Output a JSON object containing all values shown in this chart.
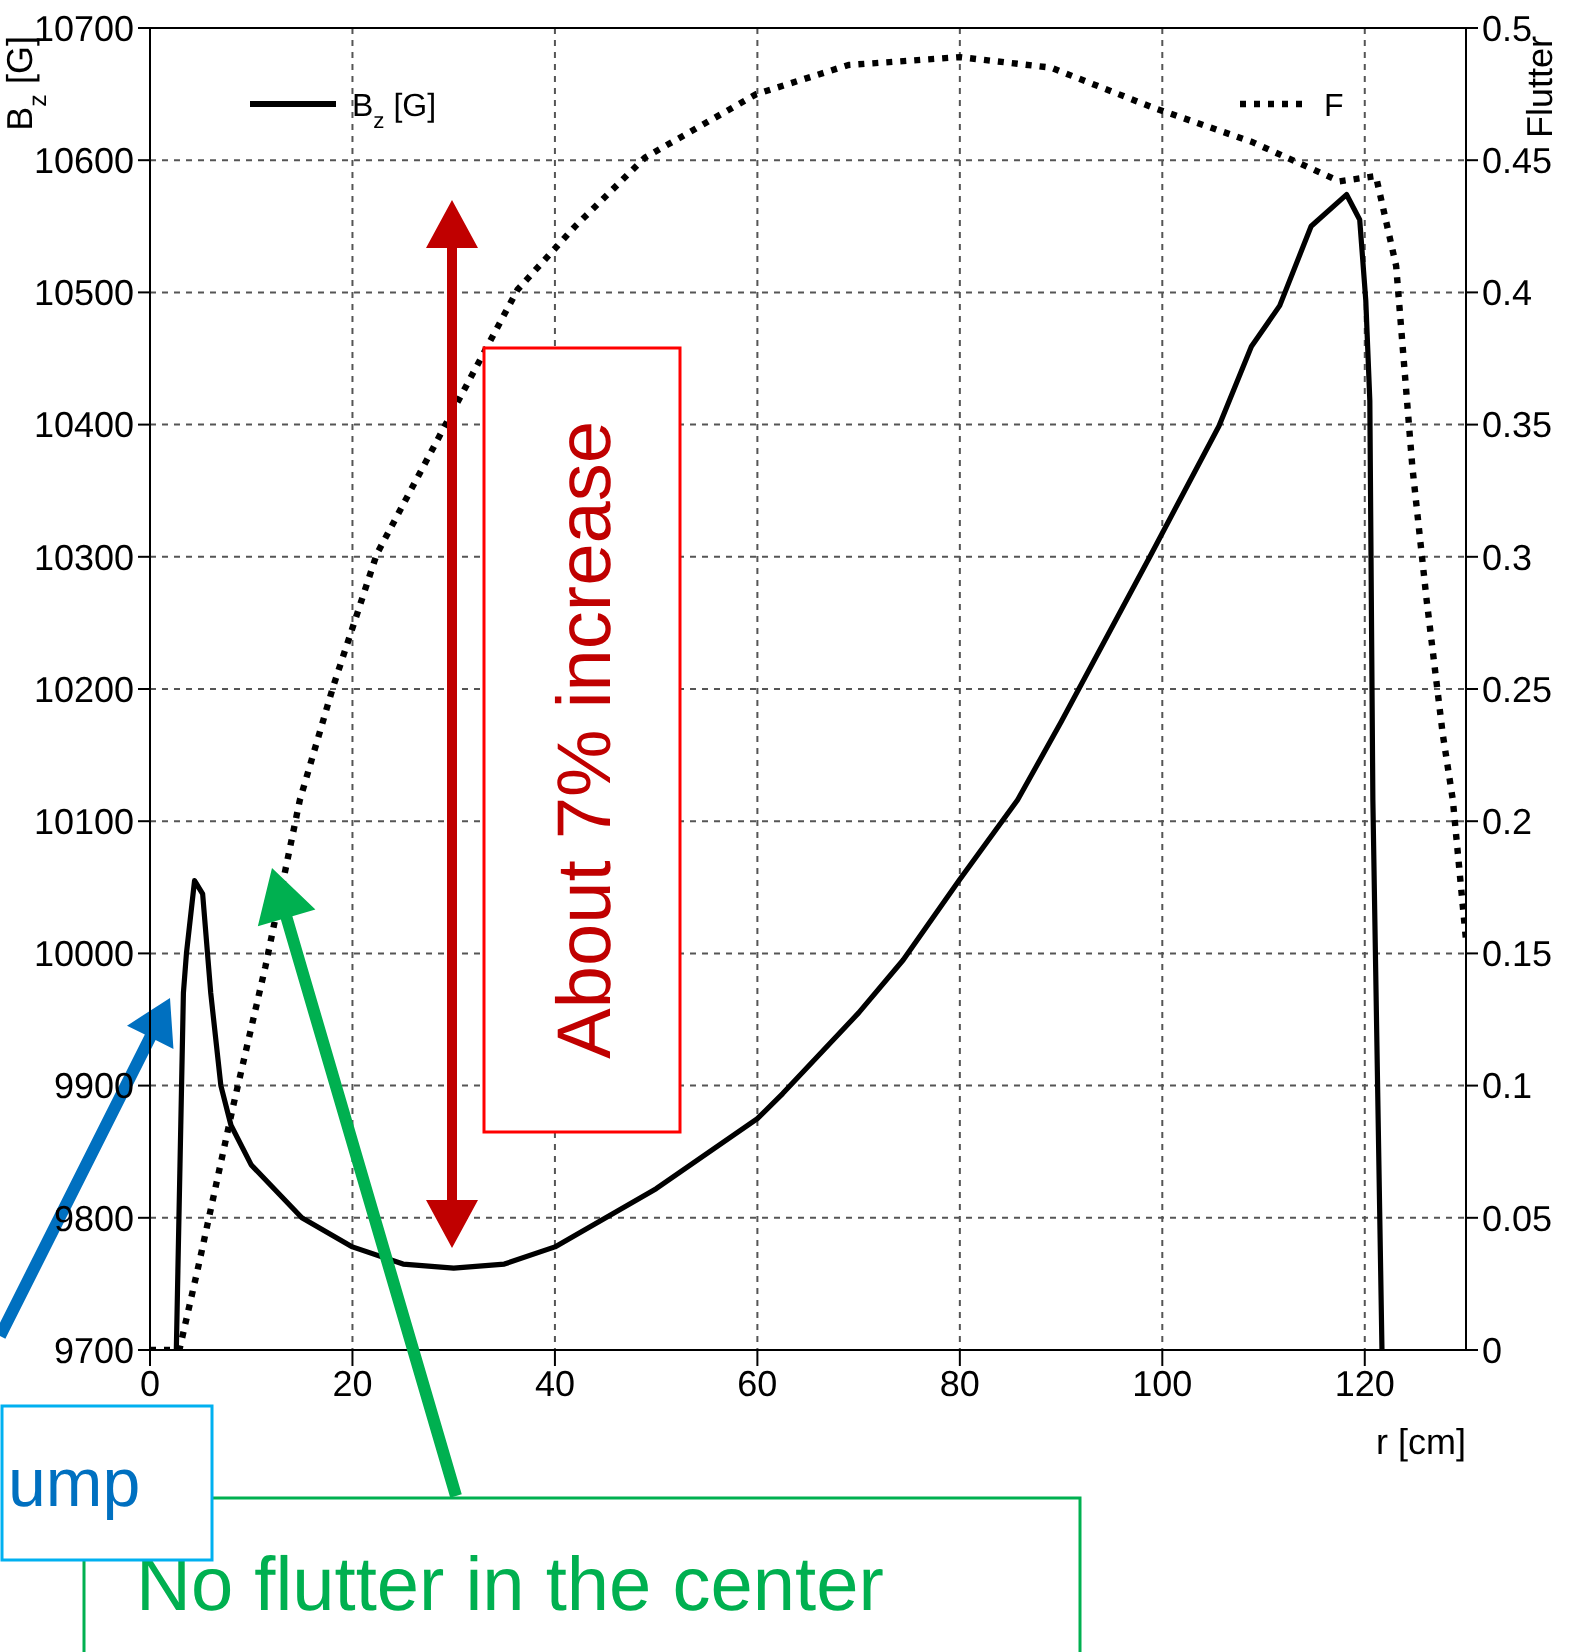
{
  "chart_data": {
    "type": "line",
    "xlabel": "r [cm]",
    "ylabel": "B$_{z}$ [G]",
    "y2label": "Flutter",
    "xlim": [
      0,
      130
    ],
    "xticks": [
      0,
      20,
      40,
      60,
      80,
      100,
      120
    ],
    "ylim": [
      9700,
      10700
    ],
    "yticks": [
      9700,
      9800,
      9900,
      10000,
      10100,
      10200,
      10300,
      10400,
      10500,
      10600,
      10700
    ],
    "y2lim": [
      0,
      0.5
    ],
    "y2ticks": [
      0,
      0.05,
      0.1,
      0.15,
      0.2,
      0.25,
      0.3,
      0.35,
      0.4,
      0.45,
      0.5
    ],
    "grid": true,
    "legend": "top",
    "marker": "none",
    "series": [
      {
        "name": "B$_{z}$ [G]",
        "color": "#000000",
        "line_style": "solid",
        "x": [
          2.6,
          3.3,
          3.6,
          4.4,
          5.2,
          6,
          7,
          8,
          10,
          15,
          20,
          25,
          30,
          35,
          40,
          50,
          60,
          62.5,
          70,
          74.4,
          79.9,
          85.7,
          90,
          98.9,
          105.6,
          108.8,
          111.6,
          114.7,
          118.2,
          119.5,
          120.1,
          120.5,
          120.8,
          121.7
        ],
        "values": [
          9700,
          9970,
          10000,
          10055,
          10045,
          9970,
          9900,
          9870,
          9840,
          9800,
          9778,
          9765,
          9762,
          9765,
          9778,
          9822,
          9875,
          9894,
          9955,
          9995,
          10055,
          10116,
          10175,
          10302,
          10399,
          10459,
          10490,
          10550,
          10574,
          10555,
          10494,
          10418,
          10116,
          9700
        ]
      },
      {
        "name": "F",
        "color": "#000000",
        "line_style": "dotted",
        "axis": "y2",
        "x": [
          0,
          2.9,
          4.8,
          8.2,
          11.4,
          14.8,
          18.1,
          22.4,
          29.2,
          36.3,
          42,
          48.9,
          59.9,
          69,
          80,
          89,
          99,
          108.8,
          117.5,
          121.1,
          123.1,
          124.7,
          126.1,
          127.7,
          128.7,
          130
        ],
        "values": [
          0,
          0,
          0.032,
          0.092,
          0.145,
          0.208,
          0.251,
          0.301,
          0.35,
          0.401,
          0.425,
          0.451,
          0.475,
          0.486,
          0.489,
          0.485,
          0.47,
          0.457,
          0.442,
          0.444,
          0.41,
          0.334,
          0.284,
          0.233,
          0.208,
          0.155
        ]
      }
    ],
    "annotations": [
      "About 7% increase",
      "ump",
      "No flutter in the center"
    ]
  }
}
